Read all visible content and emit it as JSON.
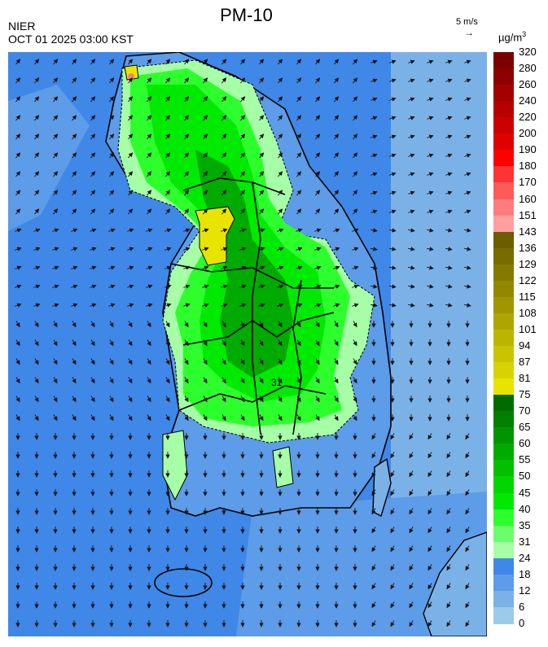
{
  "header": {
    "title": "PM-10",
    "agency": "NIER",
    "timestamp": "OCT 01 2025 03:00 KST",
    "wind_reference": "5 m/s",
    "wind_arrow_glyph": "→",
    "unit": "µg/m",
    "unit_power": "3"
  },
  "legend": {
    "labels": [
      "320",
      "280",
      "260",
      "240",
      "220",
      "200",
      "190",
      "180",
      "170",
      "160",
      "151",
      "143",
      "136",
      "129",
      "122",
      "115",
      "108",
      "101",
      "94",
      "87",
      "81",
      "75",
      "70",
      "65",
      "60",
      "55",
      "50",
      "45",
      "40",
      "35",
      "31",
      "24",
      "18",
      "12",
      "6",
      "0"
    ],
    "colors": [
      "#7a0000",
      "#8c0000",
      "#a30000",
      "#b80000",
      "#cc0000",
      "#e00000",
      "#ff0000",
      "#ff3333",
      "#ff5a5a",
      "#ff7c7c",
      "#ff9e9e",
      "#6b5d00",
      "#786c00",
      "#857a00",
      "#928800",
      "#a09700",
      "#aea600",
      "#bcb500",
      "#cac400",
      "#d8d300",
      "#e8e400",
      "#006b00",
      "#007f00",
      "#009500",
      "#00ab00",
      "#00c000",
      "#00d600",
      "#00ea00",
      "#2cff2c",
      "#6aff6a",
      "#a6ffa6",
      "#3f88e8",
      "#5c9ce8",
      "#7ab2e8",
      "#9ccbe8"
    ]
  },
  "map_legend_sample_label": "31"
}
